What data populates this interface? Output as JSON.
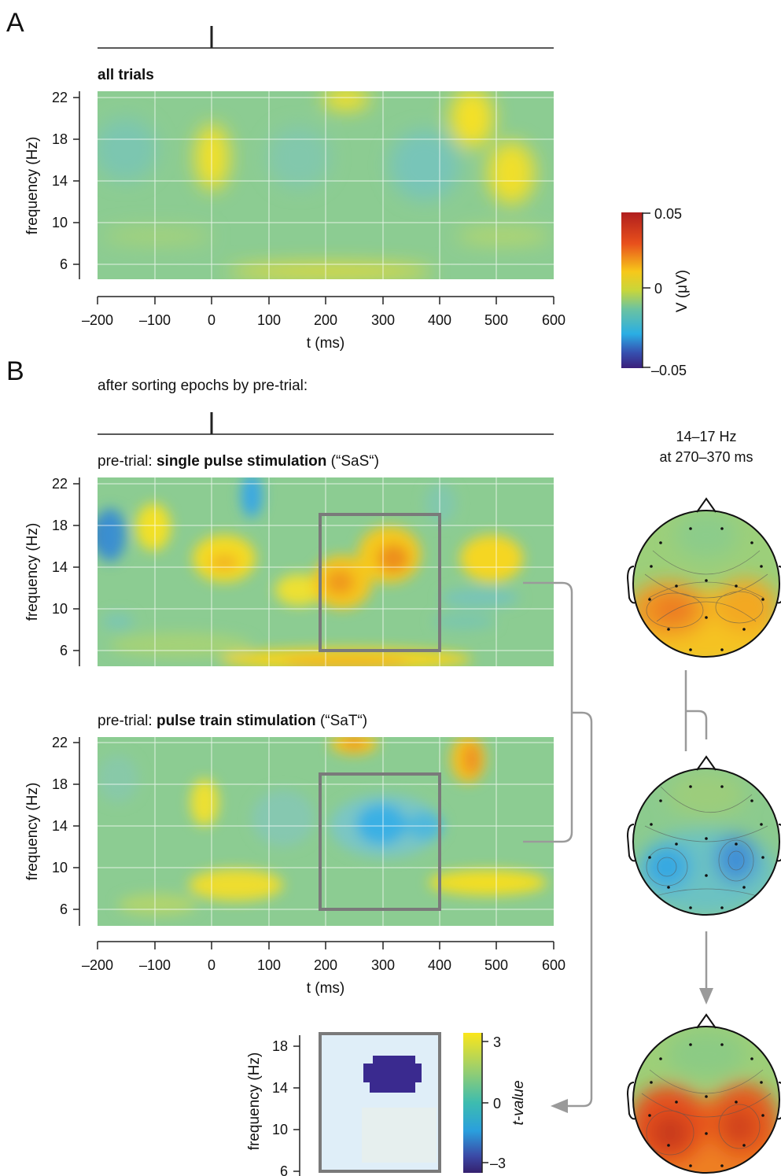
{
  "panel_a": {
    "letter": "A",
    "title": "all trials"
  },
  "panel_b": {
    "letter": "B",
    "subtitle": "after sorting epochs by pre-trial:",
    "sas_prefix": "pre-trial: ",
    "sas_bold": "single pulse stimulation",
    "sas_suffix": " (“SaS“)",
    "sat_prefix": "pre-trial: ",
    "sat_bold": "pulse train stimulation",
    "sat_suffix": " (“SaT“)"
  },
  "axes": {
    "ylabel": "frequency (Hz)",
    "xlabel": "t (ms)",
    "x_ticks": [
      "–200",
      "–100",
      "0",
      "100",
      "200",
      "300",
      "400",
      "500",
      "600"
    ],
    "y_ticks": [
      "22",
      "18",
      "14",
      "10",
      "6"
    ]
  },
  "colorbar_v": {
    "label": "V (μV)",
    "ticks": [
      "0.05",
      "0",
      "–0.05"
    ],
    "colors": [
      "#d7301f",
      "#f7e020",
      "#7fc69a",
      "#2db7e6",
      "#3b2c8c"
    ]
  },
  "topomap": {
    "title_line1": "14–17 Hz",
    "title_line2": "at 270–370 ms"
  },
  "stats": {
    "ylabel": "frequency (Hz)",
    "y_ticks": [
      "18",
      "14",
      "10",
      "6"
    ],
    "colorbar_label": "t-value",
    "colorbar_ticks": [
      "3",
      "0",
      "–3"
    ]
  },
  "chart_data": [
    {
      "type": "heatmap",
      "title": "all trials",
      "xlabel": "t (ms)",
      "ylabel": "frequency (Hz)",
      "xlim": [
        -200,
        600
      ],
      "ylim": [
        4.5,
        22.5
      ],
      "x_ticks": [
        -200,
        -100,
        0,
        100,
        200,
        300,
        400,
        500,
        600
      ],
      "y_ticks": [
        6,
        10,
        14,
        18,
        22
      ],
      "color_scale": {
        "label": "V (μV)",
        "min": -0.05,
        "max": 0.05
      }
    },
    {
      "type": "heatmap",
      "title": "pre-trial: single pulse stimulation (“SaS“)",
      "xlabel": "t (ms)",
      "ylabel": "frequency (Hz)",
      "xlim": [
        -200,
        600
      ],
      "ylim": [
        4.5,
        22.5
      ],
      "x_ticks": [
        -200,
        -100,
        0,
        100,
        200,
        300,
        400,
        500,
        600
      ],
      "y_ticks": [
        6,
        10,
        14,
        18,
        22
      ],
      "highlight_box": {
        "t": [
          190,
          400
        ],
        "f": [
          6,
          19
        ]
      },
      "color_scale": {
        "label": "V (μV)",
        "min": -0.05,
        "max": 0.05
      }
    },
    {
      "type": "heatmap",
      "title": "pre-trial: pulse train stimulation (“SaT“)",
      "xlabel": "t (ms)",
      "ylabel": "frequency (Hz)",
      "xlim": [
        -200,
        600
      ],
      "ylim": [
        4.5,
        22.5
      ],
      "x_ticks": [
        -200,
        -100,
        0,
        100,
        200,
        300,
        400,
        500,
        600
      ],
      "y_ticks": [
        6,
        10,
        14,
        18,
        22
      ],
      "highlight_box": {
        "t": [
          190,
          400
        ],
        "f": [
          6,
          19
        ]
      },
      "color_scale": {
        "label": "V (μV)",
        "min": -0.05,
        "max": 0.05
      }
    },
    {
      "type": "heatmap",
      "ylabel": "frequency (Hz)",
      "ylim": [
        6,
        19
      ],
      "y_ticks": [
        6,
        10,
        14,
        18
      ],
      "color_scale": {
        "label": "t-value",
        "min": -3,
        "max": 3
      }
    }
  ]
}
